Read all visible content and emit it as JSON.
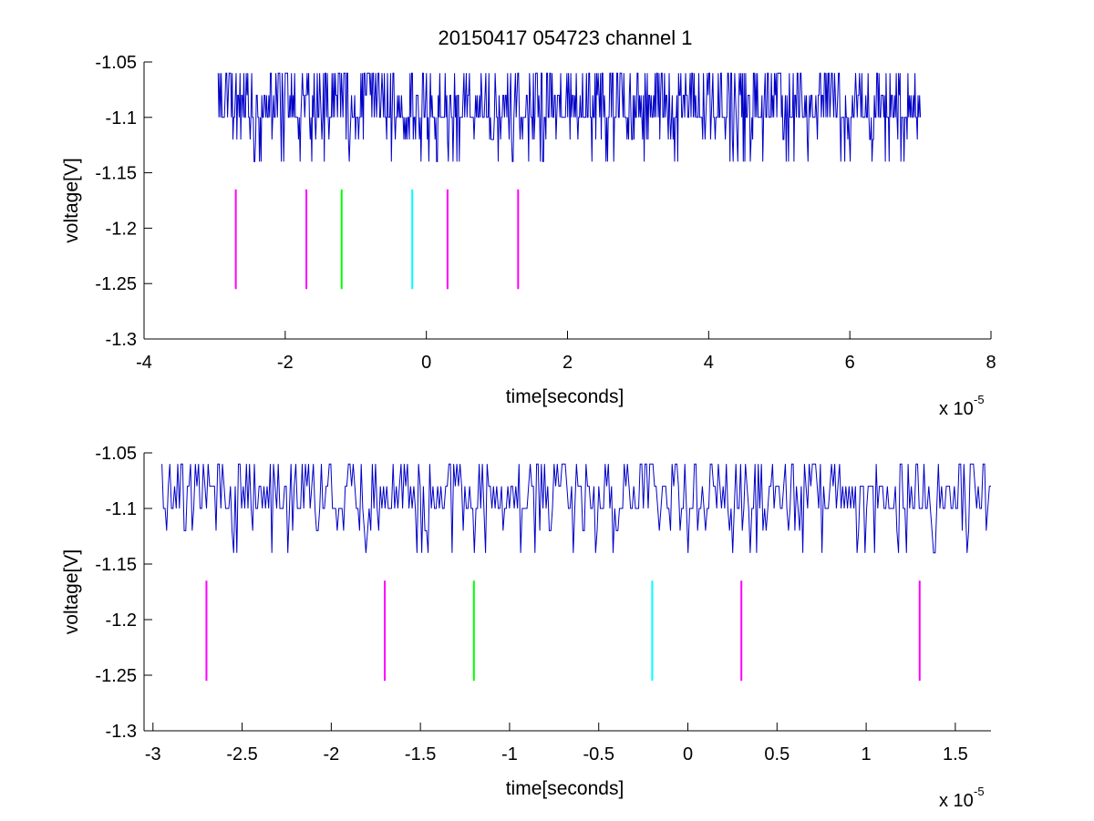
{
  "title": "20150417 054723 channel 1",
  "colors": {
    "trace": "#0000c8",
    "magenta": "#ff00ff",
    "green": "#00ff00",
    "cyan": "#00ffff",
    "axis": "#000000"
  },
  "chart_data": [
    {
      "type": "line",
      "title": "20150417 054723 channel 1",
      "xlabel": "time[seconds]",
      "ylabel": "voltage[V]",
      "x_multiplier_label": "x 10",
      "x_exponent": "-5",
      "xlim": [
        -4,
        8
      ],
      "ylim": [
        -1.3,
        -1.05
      ],
      "xticks": [
        -4,
        -2,
        0,
        2,
        4,
        6,
        8
      ],
      "xtick_labels": [
        "-4",
        "-2",
        "0",
        "2",
        "4",
        "6",
        "8"
      ],
      "yticks": [
        -1.05,
        -1.1,
        -1.15,
        -1.2,
        -1.25,
        -1.3
      ],
      "ytick_labels": [
        "-1.05",
        "-1.1",
        "-1.15",
        "-1.2",
        "-1.25",
        "-1.3"
      ],
      "grid": false,
      "series": [
        {
          "kind": "trace",
          "x_range": [
            -2.95,
            7.0
          ],
          "levels": [
            -1.06,
            -1.08,
            -1.1,
            -1.12,
            -1.14
          ],
          "color": "#0000c8"
        }
      ],
      "markers": [
        {
          "x": -2.7,
          "y_range": [
            -1.255,
            -1.165
          ],
          "color": "#ff00ff"
        },
        {
          "x": -1.7,
          "y_range": [
            -1.255,
            -1.165
          ],
          "color": "#ff00ff"
        },
        {
          "x": -1.2,
          "y_range": [
            -1.255,
            -1.165
          ],
          "color": "#00ff00"
        },
        {
          "x": -0.2,
          "y_range": [
            -1.255,
            -1.165
          ],
          "color": "#00ffff"
        },
        {
          "x": 0.3,
          "y_range": [
            -1.255,
            -1.165
          ],
          "color": "#ff00ff"
        },
        {
          "x": 1.3,
          "y_range": [
            -1.255,
            -1.165
          ],
          "color": "#ff00ff"
        }
      ]
    },
    {
      "type": "line",
      "title": "",
      "xlabel": "time[seconds]",
      "ylabel": "voltage[V]",
      "x_multiplier_label": "x 10",
      "x_exponent": "-5",
      "xlim": [
        -3.05,
        1.7
      ],
      "ylim": [
        -1.3,
        -1.05
      ],
      "xticks": [
        -3,
        -2.5,
        -2,
        -1.5,
        -1,
        -0.5,
        0,
        0.5,
        1,
        1.5
      ],
      "xtick_labels": [
        "-3",
        "-2.5",
        "-2",
        "-1.5",
        "-1",
        "-0.5",
        "0",
        "0.5",
        "1",
        "1.5"
      ],
      "yticks": [
        -1.05,
        -1.1,
        -1.15,
        -1.2,
        -1.25,
        -1.3
      ],
      "ytick_labels": [
        "-1.05",
        "-1.1",
        "-1.15",
        "-1.2",
        "-1.25",
        "-1.3"
      ],
      "grid": false,
      "series": [
        {
          "kind": "trace",
          "x_range": [
            -2.95,
            1.7
          ],
          "levels": [
            -1.06,
            -1.08,
            -1.1,
            -1.12,
            -1.14
          ],
          "color": "#0000c8"
        }
      ],
      "markers": [
        {
          "x": -2.7,
          "y_range": [
            -1.255,
            -1.165
          ],
          "color": "#ff00ff"
        },
        {
          "x": -1.7,
          "y_range": [
            -1.255,
            -1.165
          ],
          "color": "#ff00ff"
        },
        {
          "x": -1.2,
          "y_range": [
            -1.255,
            -1.165
          ],
          "color": "#00ff00"
        },
        {
          "x": -0.2,
          "y_range": [
            -1.255,
            -1.165
          ],
          "color": "#00ffff"
        },
        {
          "x": 0.3,
          "y_range": [
            -1.255,
            -1.165
          ],
          "color": "#ff00ff"
        },
        {
          "x": 1.3,
          "y_range": [
            -1.255,
            -1.165
          ],
          "color": "#ff00ff"
        }
      ]
    }
  ]
}
